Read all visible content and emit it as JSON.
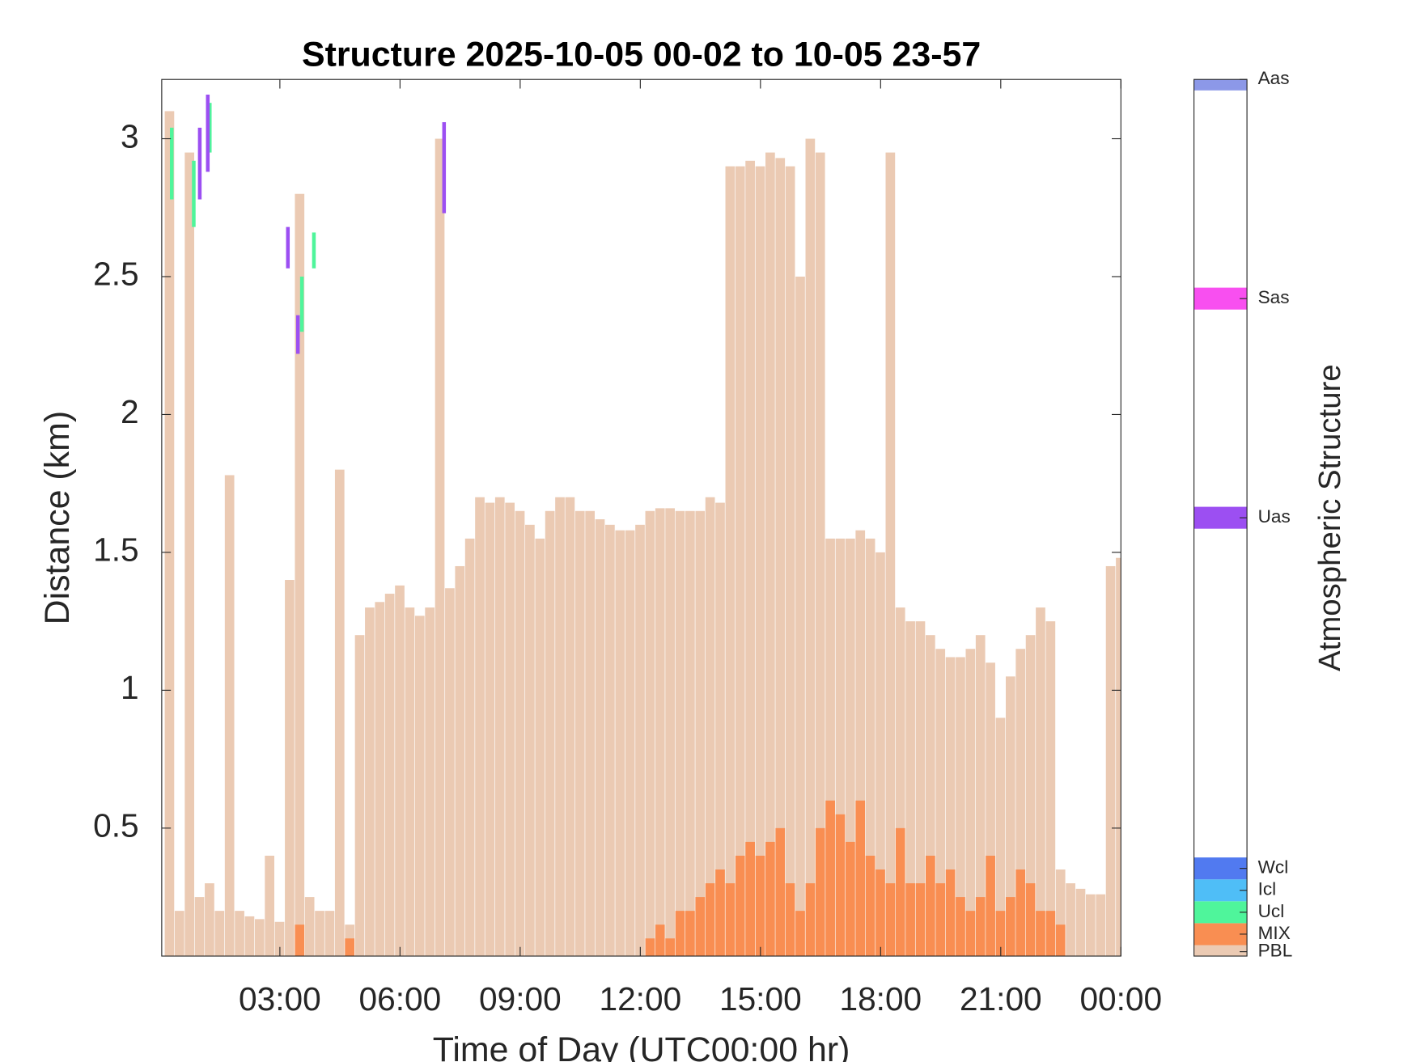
{
  "chart_data": {
    "type": "bar",
    "title": "Structure 2025-10-05 00-02 to 10-05 23-57",
    "x_label": "Time of Day (UTC00:00 hr)",
    "y_label": "Distance (km)",
    "xlim": [
      0.05,
      24
    ],
    "ylim": [
      0.036,
      3.215
    ],
    "xticks": [
      {
        "value": 3,
        "label": "03:00"
      },
      {
        "value": 6,
        "label": "06:00"
      },
      {
        "value": 9,
        "label": "09:00"
      },
      {
        "value": 12,
        "label": "12:00"
      },
      {
        "value": 15,
        "label": "15:00"
      },
      {
        "value": 18,
        "label": "18:00"
      },
      {
        "value": 21,
        "label": "21:00"
      },
      {
        "value": 24,
        "label": "00:00"
      }
    ],
    "yticks": [
      0.5,
      1,
      1.5,
      2,
      2.5,
      3
    ],
    "x": [
      0.25,
      0.5,
      0.75,
      1,
      1.25,
      1.5,
      1.75,
      2,
      2.25,
      2.5,
      2.75,
      3,
      3.25,
      3.5,
      3.75,
      4,
      4.25,
      4.5,
      4.75,
      5,
      5.25,
      5.5,
      5.75,
      6,
      6.25,
      6.5,
      6.75,
      7,
      7.25,
      7.5,
      7.75,
      8,
      8.25,
      8.5,
      8.75,
      9,
      9.25,
      9.5,
      9.75,
      10,
      10.25,
      10.5,
      10.75,
      11,
      11.25,
      11.5,
      11.75,
      12,
      12.25,
      12.5,
      12.75,
      13,
      13.25,
      13.5,
      13.75,
      14,
      14.25,
      14.5,
      14.75,
      15,
      15.25,
      15.5,
      15.75,
      16,
      16.25,
      16.5,
      16.75,
      17,
      17.25,
      17.5,
      17.75,
      18,
      18.25,
      18.5,
      18.75,
      19,
      19.25,
      19.5,
      19.75,
      20,
      20.25,
      20.5,
      20.75,
      21,
      21.25,
      21.5,
      21.75,
      22,
      22.25,
      22.5,
      22.75,
      23,
      23.25,
      23.5,
      23.75,
      24
    ],
    "series": [
      {
        "level": 0.2,
        "values": [
          3.1,
          0.2,
          2.95,
          0.25,
          0.3,
          0.2,
          1.78,
          0.2,
          0.18,
          0.17,
          0.4,
          0.16,
          1.4,
          2.8,
          0.25,
          0.2,
          0.2,
          1.8,
          0.15,
          1.2,
          1.3,
          1.32,
          1.35,
          1.38,
          1.3,
          1.27,
          1.3,
          3.0,
          1.37,
          1.45,
          1.55,
          1.7,
          1.68,
          1.7,
          1.68,
          1.65,
          1.6,
          1.55,
          1.65,
          1.7,
          1.7,
          1.65,
          1.65,
          1.62,
          1.6,
          1.58,
          1.58,
          1.6,
          1.65,
          1.66,
          1.66,
          1.65,
          1.65,
          1.65,
          1.7,
          1.68,
          2.9,
          2.9,
          2.92,
          2.9,
          2.95,
          2.93,
          2.9,
          2.5,
          3.0,
          2.95,
          1.55,
          1.55,
          1.55,
          1.58,
          1.55,
          1.5,
          2.95,
          1.3,
          1.25,
          1.25,
          1.2,
          1.15,
          1.12,
          1.12,
          1.15,
          1.2,
          1.1,
          0.9,
          1.05,
          1.15,
          1.2,
          1.3,
          1.25,
          0.35,
          0.3,
          0.28,
          0.26,
          0.26,
          1.45,
          1.48
        ]
      },
      {
        "level": 1,
        "values": [
          null,
          null,
          null,
          null,
          null,
          null,
          null,
          null,
          null,
          null,
          null,
          null,
          null,
          0.15,
          null,
          null,
          null,
          null,
          0.1,
          null,
          null,
          null,
          null,
          null,
          null,
          null,
          null,
          null,
          null,
          null,
          null,
          null,
          null,
          null,
          null,
          null,
          null,
          null,
          null,
          null,
          null,
          null,
          null,
          null,
          null,
          null,
          null,
          null,
          0.1,
          0.15,
          0.1,
          0.2,
          0.2,
          0.25,
          0.3,
          0.35,
          0.3,
          0.4,
          0.45,
          0.4,
          0.45,
          0.5,
          0.3,
          0.2,
          0.3,
          0.5,
          0.6,
          0.55,
          0.45,
          0.6,
          0.4,
          0.35,
          0.3,
          0.5,
          0.3,
          0.3,
          0.4,
          0.3,
          0.35,
          0.25,
          0.2,
          0.25,
          0.4,
          0.2,
          0.25,
          0.35,
          0.3,
          0.2,
          0.2,
          0.15,
          null,
          null,
          null,
          null,
          null,
          null
        ]
      }
    ],
    "layers": [
      {
        "level": 2,
        "x": [
          0.3,
          0.85,
          1.25,
          3.55,
          3.85
        ],
        "base": [
          2.78,
          2.68,
          2.95,
          2.3,
          2.53
        ],
        "top": [
          3.04,
          2.92,
          3.13,
          2.5,
          2.66
        ]
      },
      {
        "level": 20,
        "x": [
          1.0,
          1.2,
          3.2,
          3.45,
          7.1
        ],
        "base": [
          2.78,
          2.88,
          2.53,
          2.22,
          2.73
        ],
        "top": [
          3.04,
          3.16,
          2.68,
          2.36,
          3.06
        ]
      }
    ],
    "colorbar": {
      "label": "Atmospheric Structure",
      "lim": [
        0,
        40
      ],
      "ticks": [
        {
          "value": 0.2,
          "label": "PBL"
        },
        {
          "value": 1,
          "label": "MIX"
        },
        {
          "value": 2,
          "label": "Ucl"
        },
        {
          "value": 3,
          "label": "Icl"
        },
        {
          "value": 4,
          "label": "Wcl"
        },
        {
          "value": 20,
          "label": "Uas"
        },
        {
          "value": 30,
          "label": "Sas"
        },
        {
          "value": 40,
          "label": "Aas"
        }
      ],
      "colors": [
        "#ebcab3",
        "#f98e52",
        "#4ff59b",
        "#4fbef7",
        "#517af0",
        "#9c4ff2",
        "#f84ff0",
        "#8c98e8"
      ]
    }
  }
}
